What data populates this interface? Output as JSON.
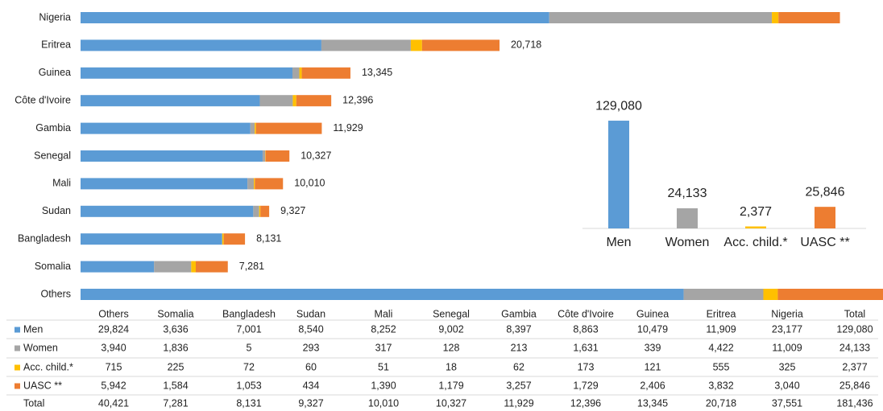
{
  "chart_data": [
    {
      "type": "stacked-bar-h",
      "categories": [
        "Others",
        "Somalia",
        "Bangladesh",
        "Sudan",
        "Mali",
        "Senegal",
        "Gambia",
        "Côte d'Ivoire",
        "Guinea",
        "Eritrea",
        "Nigeria"
      ],
      "series": [
        {
          "name": "Men",
          "color": "#5b9bd5",
          "values": [
            29824,
            3636,
            7001,
            8540,
            8252,
            9002,
            8397,
            8863,
            10479,
            11909,
            23177
          ],
          "value_labels": [
            "29,824",
            "3,636",
            "7,001",
            "8,540",
            "8,252",
            "9,002",
            "8,397",
            "8,863",
            "10,479",
            "11,909",
            "23,177"
          ]
        },
        {
          "name": "Women",
          "color": "#a5a5a5",
          "values": [
            3940,
            1836,
            5,
            293,
            317,
            128,
            213,
            1631,
            339,
            4422,
            11009
          ],
          "value_labels": [
            "3,940",
            "1,836",
            "5",
            "293",
            "317",
            "128",
            "213",
            "1,631",
            "339",
            "4,422",
            "11,009"
          ]
        },
        {
          "name": "Acc. child.*",
          "color": "#ffc000",
          "values": [
            715,
            225,
            72,
            60,
            51,
            18,
            62,
            173,
            121,
            555,
            325
          ],
          "value_labels": [
            "715",
            "225",
            "72",
            "60",
            "51",
            "18",
            "62",
            "173",
            "121",
            "555",
            "325"
          ]
        },
        {
          "name": "UASC **",
          "color": "#ed7d31",
          "values": [
            5942,
            1584,
            1053,
            434,
            1390,
            1179,
            3257,
            1729,
            2406,
            3832,
            3040
          ],
          "value_labels": [
            "5,942",
            "1,584",
            "1,053",
            "434",
            "1,390",
            "1,179",
            "3,257",
            "1,729",
            "2,406",
            "3,832",
            "3,040"
          ]
        }
      ],
      "totals": [
        40421,
        7281,
        8131,
        9327,
        10010,
        10327,
        11929,
        12396,
        13345,
        20718,
        37551
      ],
      "total_labels": [
        "40,421",
        "7,281",
        "8,131",
        "9,327",
        "10,010",
        "10,327",
        "11,929",
        "12,396",
        "13,345",
        "20,718",
        "37,551"
      ],
      "total_label": "Total",
      "grand_total": 181436,
      "grand_total_label": "181,436",
      "xlim": [
        0,
        40000
      ]
    },
    {
      "type": "bar",
      "categories": [
        "Men",
        "Women",
        "Acc. child.*",
        "UASC **"
      ],
      "values": [
        129080,
        24133,
        2377,
        25846
      ],
      "value_labels": [
        "129,080",
        "24,133",
        "2,377",
        "25,846"
      ],
      "colors": [
        "#5b9bd5",
        "#a5a5a5",
        "#ffc000",
        "#ed7d31"
      ],
      "ylim": [
        0,
        140000
      ]
    }
  ]
}
